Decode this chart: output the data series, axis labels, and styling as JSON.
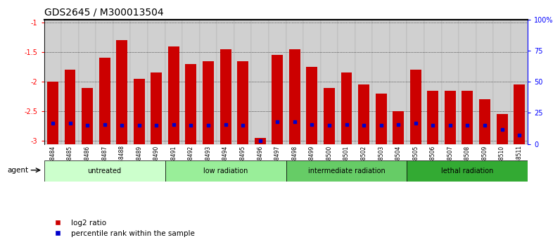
{
  "title": "GDS2645 / M300013504",
  "samples": [
    "GSM158484",
    "GSM158485",
    "GSM158486",
    "GSM158487",
    "GSM158488",
    "GSM158489",
    "GSM158490",
    "GSM158491",
    "GSM158492",
    "GSM158493",
    "GSM158494",
    "GSM158495",
    "GSM158496",
    "GSM158497",
    "GSM158498",
    "GSM158499",
    "GSM158500",
    "GSM158501",
    "GSM158502",
    "GSM158503",
    "GSM158504",
    "GSM158505",
    "GSM158506",
    "GSM158507",
    "GSM158508",
    "GSM158509",
    "GSM158510",
    "GSM158511"
  ],
  "log2_ratio": [
    -2.0,
    -1.8,
    -2.1,
    -1.6,
    -1.3,
    -1.95,
    -1.85,
    -1.4,
    -1.7,
    -1.65,
    -1.45,
    -1.65,
    -2.95,
    -1.55,
    -1.45,
    -1.75,
    -2.1,
    -1.85,
    -2.05,
    -2.2,
    -2.5,
    -1.8,
    -2.15,
    -2.15,
    -2.15,
    -2.3,
    -2.55,
    -2.05
  ],
  "percentile": [
    15,
    15,
    13,
    14,
    13,
    13,
    13,
    14,
    13,
    13,
    14,
    13,
    0,
    16,
    16,
    14,
    13,
    14,
    13,
    13,
    14,
    15,
    13,
    13,
    13,
    13,
    10,
    5
  ],
  "groups": [
    {
      "label": "untreated",
      "start": 0,
      "end": 7,
      "color": "#ccffcc"
    },
    {
      "label": "low radiation",
      "start": 7,
      "end": 14,
      "color": "#99ee99"
    },
    {
      "label": "intermediate radiation",
      "start": 14,
      "end": 21,
      "color": "#66cc66"
    },
    {
      "label": "lethal radiation",
      "start": 21,
      "end": 28,
      "color": "#33aa33"
    }
  ],
  "bar_color": "#cc0000",
  "dot_color": "#0000cc",
  "ylim_left": [
    -3.05,
    -0.95
  ],
  "yticks_left": [
    -3.0,
    -2.5,
    -2.0,
    -1.5,
    -1.0
  ],
  "ylim_right": [
    0,
    100
  ],
  "yticks_right": [
    0,
    25,
    50,
    75,
    100
  ],
  "background_color": "#ffffff",
  "title_fontsize": 10,
  "tick_fontsize": 7,
  "legend_label_log2": "log2 ratio",
  "legend_label_pct": "percentile rank within the sample",
  "agent_label": "agent"
}
